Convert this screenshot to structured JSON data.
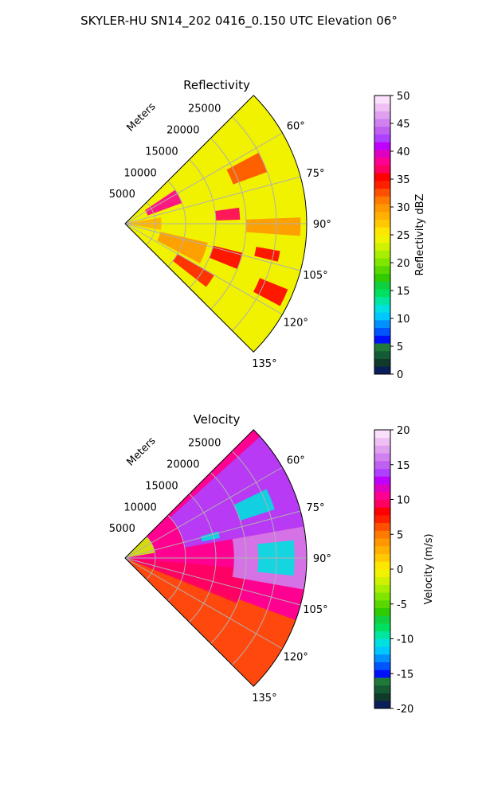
{
  "figure": {
    "suptitle": "SKYLER-HU  SN14_202  0416_0.150 UTC Elevation 06°"
  },
  "chart_data": [
    {
      "type": "heatmap",
      "projection": "polar-sector",
      "title": "Reflectivity",
      "radial_label": "Meters",
      "radial_ticks": [
        5000,
        10000,
        15000,
        20000,
        25000
      ],
      "angle_ticks": [
        60,
        75,
        90,
        105,
        120,
        135
      ],
      "angle_tick_labels": [
        "60°",
        "75°",
        "90°",
        "105°",
        "120°",
        "135°"
      ],
      "range_limit": 30000,
      "theta_range_deg": [
        45,
        135
      ],
      "colorbar": {
        "label": "Reflectivity dBZ",
        "min": 0,
        "max": 50,
        "ticks": [
          0,
          5,
          10,
          15,
          20,
          25,
          30,
          35,
          40,
          45,
          50
        ],
        "colors": [
          "#0b1e5a",
          "#103a2a",
          "#145a35",
          "#1f7a3a",
          "#0010ff",
          "#0055ff",
          "#0090ff",
          "#00c8ff",
          "#00e0e0",
          "#00e6a0",
          "#00e060",
          "#10d040",
          "#30cc00",
          "#58d800",
          "#80e600",
          "#a8ee00",
          "#d0f200",
          "#f0f200",
          "#ffe600",
          "#ffc800",
          "#ffb000",
          "#ff9800",
          "#ff7a00",
          "#ff5000",
          "#ff2000",
          "#ff0000",
          "#ff0060",
          "#ff0090",
          "#e000c0",
          "#c000ff",
          "#b040ff",
          "#c060f0",
          "#d080f0",
          "#e0a0f0",
          "#f0c0f4",
          "#fbe0fb"
        ]
      },
      "field_regions": [
        {
          "r": [
            0,
            6000
          ],
          "theta": [
            80,
            100
          ],
          "value": 28
        },
        {
          "r": [
            4000,
            10000
          ],
          "theta": [
            56,
            70
          ],
          "value": 38
        },
        {
          "r": [
            6000,
            14000
          ],
          "theta": [
            103,
            118
          ],
          "value": 30
        },
        {
          "r": [
            15000,
            20000
          ],
          "theta": [
            104,
            112
          ],
          "value": 36
        },
        {
          "r": [
            15000,
            19000
          ],
          "theta": [
            82,
            88
          ],
          "value": 37
        },
        {
          "r": [
            22000,
            26000
          ],
          "theta": [
            100,
            104
          ],
          "value": 36
        },
        {
          "r": [
            19000,
            25000
          ],
          "theta": [
            62,
            70
          ],
          "value": 32
        },
        {
          "r": [
            24000,
            29000
          ],
          "theta": [
            112,
            118
          ],
          "value": 36
        },
        {
          "r": [
            10000,
            17000
          ],
          "theta": [
            120,
            128
          ],
          "value": 34
        },
        {
          "r": [
            20000,
            29000
          ],
          "theta": [
            88,
            94
          ],
          "value": 30
        }
      ],
      "background_value": 24
    },
    {
      "type": "heatmap",
      "projection": "polar-sector",
      "title": "Velocity",
      "radial_label": "Meters",
      "radial_ticks": [
        5000,
        10000,
        15000,
        20000,
        25000
      ],
      "angle_ticks": [
        60,
        75,
        90,
        105,
        120,
        135
      ],
      "angle_tick_labels": [
        "60°",
        "75°",
        "90°",
        "105°",
        "120°",
        "135°"
      ],
      "range_limit": 30000,
      "theta_range_deg": [
        45,
        135
      ],
      "colorbar": {
        "label": "Velocity (m/s)",
        "min": -20,
        "max": 20,
        "ticks": [
          -20,
          -15,
          -10,
          -5,
          0,
          5,
          10,
          15,
          20
        ],
        "colors": [
          "#0b1e5a",
          "#103a2a",
          "#145a35",
          "#1f7a3a",
          "#0010ff",
          "#0055ff",
          "#0090ff",
          "#00c8ff",
          "#00e0e0",
          "#00e6a0",
          "#00e060",
          "#10d040",
          "#30cc00",
          "#58d800",
          "#80e600",
          "#a8ee00",
          "#d0f200",
          "#f0f200",
          "#ffe600",
          "#ffc800",
          "#ffb000",
          "#ff9800",
          "#ff7a00",
          "#ff5000",
          "#ff2000",
          "#ff0000",
          "#ff0060",
          "#ff0090",
          "#e000c0",
          "#c000ff",
          "#b040ff",
          "#c060f0",
          "#d080f0",
          "#e0a0f0",
          "#f0c0f4",
          "#fbe0fb"
        ]
      },
      "field_regions": [
        {
          "r": [
            0,
            5000
          ],
          "theta": [
            45,
            80
          ],
          "value": -2
        },
        {
          "r": [
            0,
            30000
          ],
          "theta": [
            110,
            135
          ],
          "value": 6
        },
        {
          "r": [
            0,
            20000
          ],
          "theta": [
            95,
            112
          ],
          "value": 9
        },
        {
          "r": [
            10000,
            30000
          ],
          "theta": [
            48,
            80
          ],
          "value": 14
        },
        {
          "r": [
            18000,
            30000
          ],
          "theta": [
            80,
            100
          ],
          "value": 16
        },
        {
          "r": [
            22000,
            28000
          ],
          "theta": [
            84,
            96
          ],
          "value": -11
        },
        {
          "r": [
            20000,
            26000
          ],
          "theta": [
            64,
            72
          ],
          "value": -11
        },
        {
          "r": [
            13000,
            16000
          ],
          "theta": [
            74,
            78
          ],
          "value": -11
        }
      ],
      "background_value": 10
    }
  ]
}
